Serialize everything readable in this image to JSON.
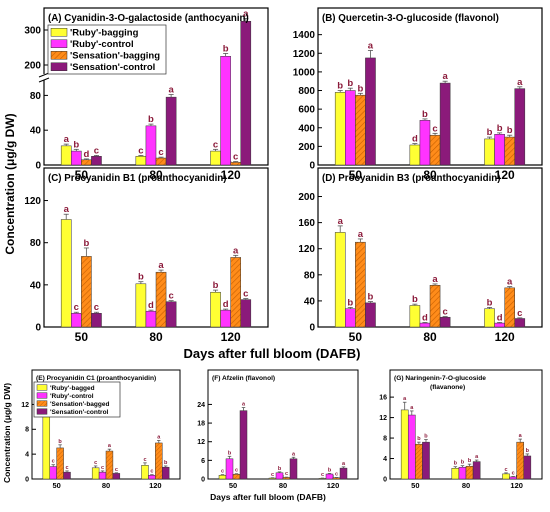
{
  "figure": {
    "ylabel_top": "Concentration (μg/g DW)",
    "xlabel_top": "Days after full bloom (DAFB)",
    "ylabel_bottom": "Concentration (μg/g DW)",
    "xlabel_bottom": "Days after full bloom (DAFB)"
  },
  "chart_data": [
    {
      "type": "bar",
      "title": "(A) Cyanidin-3-O-galactoside (anthocyanin)",
      "categories": [
        "50",
        "80",
        "120"
      ],
      "axis_break": {
        "lower": [
          0,
          100
        ],
        "upper": [
          180,
          340
        ]
      },
      "lower_ticks": [
        0,
        40,
        80
      ],
      "upper_ticks": [
        200,
        300
      ],
      "legend": "top-left",
      "series": [
        {
          "name": "'Ruby'-bagging",
          "values": [
            22,
            10,
            16
          ],
          "errors": [
            2,
            1,
            2
          ],
          "letters": [
            "a",
            "c",
            "c"
          ]
        },
        {
          "name": "'Ruby'-control",
          "values": [
            16,
            45,
            225
          ],
          "errors": [
            2,
            2,
            8
          ],
          "letters": [
            "b",
            "b",
            "b"
          ]
        },
        {
          "name": "'Sensation'-bagging",
          "values": [
            6,
            8,
            3
          ],
          "errors": [
            1,
            1,
            1
          ],
          "letters": [
            "d",
            "c",
            "c"
          ]
        },
        {
          "name": "'Sensation'-control",
          "values": [
            10,
            78,
            325
          ],
          "errors": [
            1,
            3,
            8
          ],
          "letters": [
            "c",
            "a",
            "a"
          ]
        }
      ]
    },
    {
      "type": "bar",
      "title": "(B) Quercetin-3-O-glucoside (flavonol)",
      "categories": [
        "50",
        "80",
        "120"
      ],
      "ylim": [
        0,
        1450
      ],
      "yticks": [
        0,
        200,
        400,
        600,
        800,
        1000,
        1200,
        1400
      ],
      "series": [
        {
          "name": "'Ruby'-bagging",
          "values": [
            780,
            215,
            280
          ],
          "errors": [
            20,
            15,
            20
          ],
          "letters": [
            "b",
            "d",
            "b"
          ]
        },
        {
          "name": "'Ruby'-control",
          "values": [
            800,
            480,
            330
          ],
          "errors": [
            25,
            15,
            15
          ],
          "letters": [
            "b",
            "b",
            "b"
          ]
        },
        {
          "name": "'Sensation'-bagging",
          "values": [
            750,
            320,
            300
          ],
          "errors": [
            20,
            20,
            20
          ],
          "letters": [
            "b",
            "c",
            "b"
          ]
        },
        {
          "name": "'Sensation'-control",
          "values": [
            1150,
            880,
            820
          ],
          "errors": [
            80,
            20,
            20
          ],
          "letters": [
            "a",
            "a",
            "a"
          ]
        }
      ]
    },
    {
      "type": "bar",
      "title": "(C) Procyanidin B1 (proanthocyanidin)",
      "categories": [
        "50",
        "80",
        "120"
      ],
      "ylim": [
        0,
        130
      ],
      "yticks": [
        0,
        40,
        80,
        120
      ],
      "series": [
        {
          "name": "'Ruby'-bagging",
          "values": [
            102,
            41,
            33
          ],
          "errors": [
            5,
            2,
            2
          ],
          "letters": [
            "a",
            "b",
            "b"
          ]
        },
        {
          "name": "'Ruby'-control",
          "values": [
            13,
            15,
            16
          ],
          "errors": [
            1,
            1,
            1
          ],
          "letters": [
            "c",
            "d",
            "d"
          ]
        },
        {
          "name": "'Sensation'-bagging",
          "values": [
            67,
            52,
            66
          ],
          "errors": [
            8,
            2,
            2
          ],
          "letters": [
            "b",
            "a",
            "a"
          ]
        },
        {
          "name": "'Sensation'-control",
          "values": [
            13,
            24,
            26
          ],
          "errors": [
            1,
            1,
            1
          ],
          "letters": [
            "c",
            "c",
            "c"
          ]
        }
      ]
    },
    {
      "type": "bar",
      "title": "(D) Procyanidin B3 (proanthocyanidin)",
      "categories": [
        "50",
        "80",
        "120"
      ],
      "ylim": [
        0,
        210
      ],
      "yticks": [
        0,
        40,
        80,
        120,
        160,
        200
      ],
      "series": [
        {
          "name": "'Ruby'-bagging",
          "values": [
            145,
            33,
            28
          ],
          "errors": [
            10,
            2,
            2
          ],
          "letters": [
            "a",
            "b",
            "b"
          ]
        },
        {
          "name": "'Ruby'-control",
          "values": [
            28,
            6,
            6
          ],
          "errors": [
            2,
            1,
            1
          ],
          "letters": [
            "b",
            "d",
            "d"
          ]
        },
        {
          "name": "'Sensation'-bagging",
          "values": [
            130,
            64,
            60
          ],
          "errors": [
            5,
            2,
            2
          ],
          "letters": [
            "a",
            "a",
            "a"
          ]
        },
        {
          "name": "'Sensation'-control",
          "values": [
            37,
            15,
            13
          ],
          "errors": [
            2,
            1,
            1
          ],
          "letters": [
            "b",
            "c",
            "c"
          ]
        }
      ]
    },
    {
      "type": "bar",
      "title": "(E) Procyanidin C1 (proanthocyanidin)",
      "categories": [
        "50",
        "80",
        "120"
      ],
      "ylim": [
        0,
        14
      ],
      "yticks": [
        0,
        4,
        8,
        12
      ],
      "legend": "top-left",
      "series": [
        {
          "name": "'Ruby'-bagged",
          "values": [
            10.2,
            1.8,
            2.2
          ],
          "errors": [
            1.5,
            0.3,
            0.4
          ],
          "letters": [
            "a",
            "c",
            "c"
          ]
        },
        {
          "name": "'Ruby'-control",
          "values": [
            2,
            1.1,
            0.6
          ],
          "errors": [
            0.3,
            0.2,
            0.1
          ],
          "letters": [
            "c",
            "c",
            "c"
          ]
        },
        {
          "name": "'Sensation'-bagged",
          "values": [
            5,
            4.5,
            5.8
          ],
          "errors": [
            0.5,
            0.3,
            0.4
          ],
          "letters": [
            "b",
            "a",
            "a"
          ]
        },
        {
          "name": "'Sensation'-control",
          "values": [
            1.1,
            0.9,
            1.9
          ],
          "errors": [
            0.2,
            0.1,
            0.2
          ],
          "letters": [
            "c",
            "c",
            "b"
          ]
        }
      ]
    },
    {
      "type": "bar",
      "title": "(F) Afzelin (flavonol)",
      "categories": [
        "50",
        "80",
        "120"
      ],
      "ylim": [
        0,
        28
      ],
      "yticks": [
        0,
        6,
        12,
        18,
        24
      ],
      "series": [
        {
          "name": "'Ruby'-bagged",
          "values": [
            1.2,
            0.3,
            0.2
          ],
          "errors": [
            0.2,
            0.1,
            0.1
          ],
          "letters": [
            "c",
            "c",
            "c"
          ]
        },
        {
          "name": "'Ruby'-control",
          "values": [
            6.5,
            2,
            1.6
          ],
          "errors": [
            0.8,
            0.3,
            0.2
          ],
          "letters": [
            "b",
            "b",
            "b"
          ]
        },
        {
          "name": "'Sensation'-bagged",
          "values": [
            1.5,
            0.5,
            0.4
          ],
          "errors": [
            0.2,
            0.1,
            0.1
          ],
          "letters": [
            "c",
            "c",
            "c"
          ]
        },
        {
          "name": "'Sensation'-control",
          "values": [
            22,
            6.5,
            3.5
          ],
          "errors": [
            1,
            0.5,
            0.4
          ],
          "letters": [
            "a",
            "a",
            "a"
          ]
        }
      ]
    },
    {
      "type": "bar",
      "title": "(G) Naringenin-7-O-glucoside",
      "subtitle": "(flavanone)",
      "categories": [
        "50",
        "80",
        "120"
      ],
      "ylim": [
        0,
        17
      ],
      "yticks": [
        0,
        4,
        8,
        12,
        16
      ],
      "series": [
        {
          "name": "'Ruby'-bagged",
          "values": [
            13.5,
            2.1,
            1
          ],
          "errors": [
            1.5,
            0.3,
            0.2
          ],
          "letters": [
            "a",
            "b",
            "c"
          ]
        },
        {
          "name": "'Ruby'-control",
          "values": [
            12.5,
            2.3,
            0.4
          ],
          "errors": [
            0.8,
            0.3,
            0.1
          ],
          "letters": [
            "a",
            "b",
            "c"
          ]
        },
        {
          "name": "'Sensation'-bagged",
          "values": [
            6.8,
            2.5,
            7.2
          ],
          "errors": [
            0.4,
            0.4,
            0.6
          ],
          "letters": [
            "b",
            "b",
            "a"
          ]
        },
        {
          "name": "'Sensation'-control",
          "values": [
            7.2,
            3.4,
            4.5
          ],
          "errors": [
            0.5,
            0.3,
            0.4
          ],
          "letters": [
            "b",
            "a",
            "b"
          ]
        }
      ]
    }
  ],
  "colors": {
    "ruby_bag": "#ffff33",
    "ruby_ctrl": "#ff33ff",
    "sens_bag": "#ff8c1a",
    "sens_ctrl": "#8b1a7a",
    "axis": "#000000",
    "letter": "#8b1a3a"
  }
}
